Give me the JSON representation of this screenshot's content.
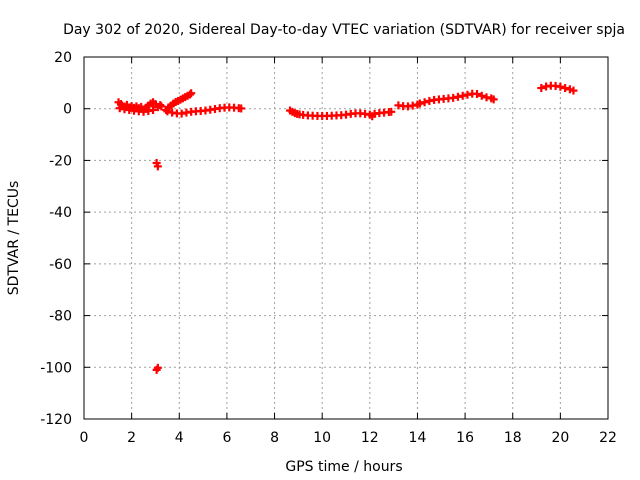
{
  "chart_data": {
    "type": "scatter",
    "title": "Day 302 of 2020, Sidereal Day-to-day VTEC variation (SDTVAR) for receiver spja",
    "xlabel": "GPS time / hours",
    "ylabel": "SDTVAR / TECUs",
    "xlim": [
      0,
      22
    ],
    "ylim": [
      -120,
      20
    ],
    "xticks": [
      0,
      2,
      4,
      6,
      8,
      10,
      12,
      14,
      16,
      18,
      20,
      22
    ],
    "yticks": [
      -120,
      -100,
      -80,
      -60,
      -40,
      -20,
      0,
      20
    ],
    "grid": true,
    "marker": "plus",
    "color": "#ff0000",
    "series": [
      {
        "points": [
          [
            1.45,
            2.5
          ],
          [
            1.55,
            1.8
          ],
          [
            1.6,
            1.2
          ],
          [
            1.7,
            0.8
          ],
          [
            1.8,
            1.5
          ],
          [
            1.9,
            0.5
          ],
          [
            2.0,
            1.0
          ],
          [
            2.1,
            0.3
          ],
          [
            2.2,
            0.9
          ],
          [
            2.3,
            0.2
          ],
          [
            2.4,
            0.7
          ],
          [
            2.5,
            -0.3
          ],
          [
            2.6,
            0.4
          ],
          [
            2.7,
            1.2
          ],
          [
            2.8,
            2.0
          ],
          [
            2.9,
            2.5
          ],
          [
            3.0,
            1.8
          ],
          [
            3.1,
            0.6
          ],
          [
            3.2,
            1.4
          ],
          [
            3.25,
            0.9
          ],
          [
            1.5,
            0.2
          ],
          [
            1.7,
            -0.2
          ],
          [
            1.9,
            -0.5
          ],
          [
            2.1,
            -0.8
          ],
          [
            2.3,
            -1.0
          ],
          [
            2.5,
            -1.2
          ],
          [
            2.7,
            -0.9
          ],
          [
            2.9,
            -0.5
          ],
          [
            3.05,
            -21.0
          ],
          [
            3.1,
            -22.3
          ],
          [
            3.05,
            -101.0
          ],
          [
            3.1,
            -100.2
          ],
          [
            3.45,
            -0.5
          ],
          [
            3.55,
            0.5
          ],
          [
            3.65,
            1.2
          ],
          [
            3.75,
            2.0
          ],
          [
            3.85,
            2.6
          ],
          [
            3.95,
            3.0
          ],
          [
            4.05,
            3.5
          ],
          [
            4.15,
            4.0
          ],
          [
            4.25,
            4.5
          ],
          [
            4.35,
            5.0
          ],
          [
            4.45,
            5.5
          ],
          [
            4.5,
            6.0
          ],
          [
            3.5,
            -1.0
          ],
          [
            3.7,
            -1.5
          ],
          [
            3.9,
            -1.8
          ],
          [
            4.1,
            -1.9
          ],
          [
            4.3,
            -1.5
          ],
          [
            4.5,
            -1.2
          ],
          [
            4.7,
            -1.0
          ],
          [
            4.9,
            -0.9
          ],
          [
            5.1,
            -0.7
          ],
          [
            5.3,
            -0.4
          ],
          [
            5.5,
            -0.1
          ],
          [
            5.7,
            0.2
          ],
          [
            5.9,
            0.4
          ],
          [
            6.1,
            0.5
          ],
          [
            6.3,
            0.4
          ],
          [
            6.5,
            0.2
          ],
          [
            6.6,
            0.1
          ],
          [
            8.65,
            -0.7
          ],
          [
            8.75,
            -1.2
          ],
          [
            8.85,
            -1.7
          ],
          [
            8.95,
            -2.0
          ],
          [
            9.05,
            -2.2
          ],
          [
            9.2,
            -2.4
          ],
          [
            9.4,
            -2.6
          ],
          [
            9.6,
            -2.7
          ],
          [
            9.8,
            -2.8
          ],
          [
            10.0,
            -2.8
          ],
          [
            10.2,
            -2.8
          ],
          [
            10.4,
            -2.7
          ],
          [
            10.6,
            -2.6
          ],
          [
            10.8,
            -2.5
          ],
          [
            11.0,
            -2.3
          ],
          [
            11.2,
            -2.0
          ],
          [
            11.4,
            -1.8
          ],
          [
            11.6,
            -1.8
          ],
          [
            11.8,
            -2.0
          ],
          [
            12.0,
            -2.3
          ],
          [
            12.1,
            -2.9
          ],
          [
            12.2,
            -2.0
          ],
          [
            12.4,
            -1.7
          ],
          [
            12.6,
            -1.5
          ],
          [
            12.8,
            -1.3
          ],
          [
            12.9,
            -1.2
          ],
          [
            13.2,
            1.3
          ],
          [
            13.4,
            1.0
          ],
          [
            13.6,
            0.9
          ],
          [
            13.8,
            1.2
          ],
          [
            14.0,
            1.6
          ],
          [
            14.1,
            2.0
          ],
          [
            14.3,
            2.5
          ],
          [
            14.5,
            3.0
          ],
          [
            14.7,
            3.4
          ],
          [
            14.9,
            3.6
          ],
          [
            15.1,
            3.8
          ],
          [
            15.3,
            4.0
          ],
          [
            15.5,
            4.2
          ],
          [
            15.7,
            4.6
          ],
          [
            15.9,
            5.0
          ],
          [
            16.1,
            5.4
          ],
          [
            16.3,
            5.8
          ],
          [
            16.5,
            5.7
          ],
          [
            16.7,
            5.0
          ],
          [
            16.9,
            4.4
          ],
          [
            17.1,
            4.0
          ],
          [
            17.2,
            3.6
          ],
          [
            19.2,
            8.0
          ],
          [
            19.4,
            8.6
          ],
          [
            19.6,
            8.9
          ],
          [
            19.8,
            8.8
          ],
          [
            20.0,
            8.5
          ],
          [
            20.2,
            8.0
          ],
          [
            20.4,
            7.5
          ],
          [
            20.55,
            7.0
          ]
        ]
      }
    ]
  }
}
